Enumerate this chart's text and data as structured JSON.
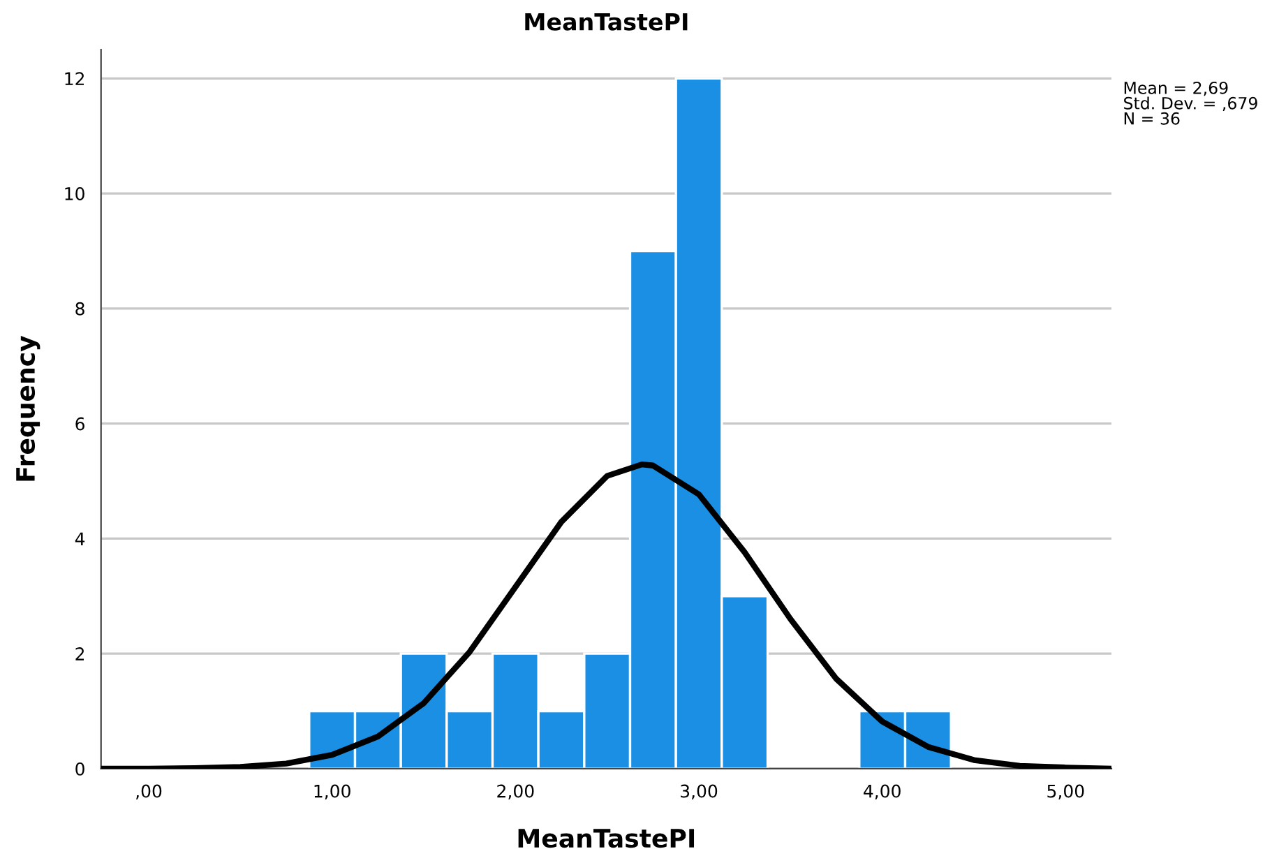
{
  "chart_data": {
    "type": "histogram",
    "title": "MeanTastePI",
    "xlabel": "MeanTastePI",
    "ylabel": "Frequency",
    "bins": [
      0.875,
      1.125,
      1.375,
      1.625,
      1.875,
      2.125,
      2.375,
      2.625,
      2.875,
      3.125,
      3.375,
      3.625,
      3.875,
      4.125,
      4.375
    ],
    "series": [
      {
        "color": "#1a8fe3",
        "values": [
          1,
          1,
          2,
          1,
          2,
          1,
          2,
          9,
          12,
          3,
          0,
          0,
          1,
          1
        ]
      },
      {
        "type": "line",
        "color": "#000000",
        "x": [
          -0.25,
          0,
          0.25,
          0.5,
          0.75,
          1.0,
          1.25,
          1.5,
          1.75,
          2.0,
          2.25,
          2.5,
          2.69,
          2.75,
          3.0,
          3.25,
          3.5,
          3.75,
          4.0,
          4.25,
          4.5,
          4.75,
          5.0,
          5.25
        ],
        "values": [
          0.0,
          0.0,
          0.01,
          0.03,
          0.09,
          0.24,
          0.56,
          1.14,
          2.03,
          3.16,
          4.29,
          5.09,
          5.29,
          5.27,
          4.77,
          3.76,
          2.6,
          1.56,
          0.82,
          0.38,
          0.15,
          0.05,
          0.02,
          0.0
        ]
      }
    ],
    "xlim": [
      -0.26,
      5.25
    ],
    "ylim": [
      0,
      12.5
    ],
    "xticks": [
      {
        "value": 0,
        "label": ",00"
      },
      {
        "value": 1,
        "label": "1,00"
      },
      {
        "value": 2,
        "label": "2,00"
      },
      {
        "value": 3,
        "label": "3,00"
      },
      {
        "value": 4,
        "label": "4,00"
      },
      {
        "value": 5,
        "label": "5,00"
      }
    ],
    "yticks": [
      0,
      2,
      4,
      6,
      8,
      10,
      12
    ],
    "grid": "y",
    "annotations": [
      "Mean = 2,69\nStd. Dev. = ,679\nN = 36"
    ]
  }
}
